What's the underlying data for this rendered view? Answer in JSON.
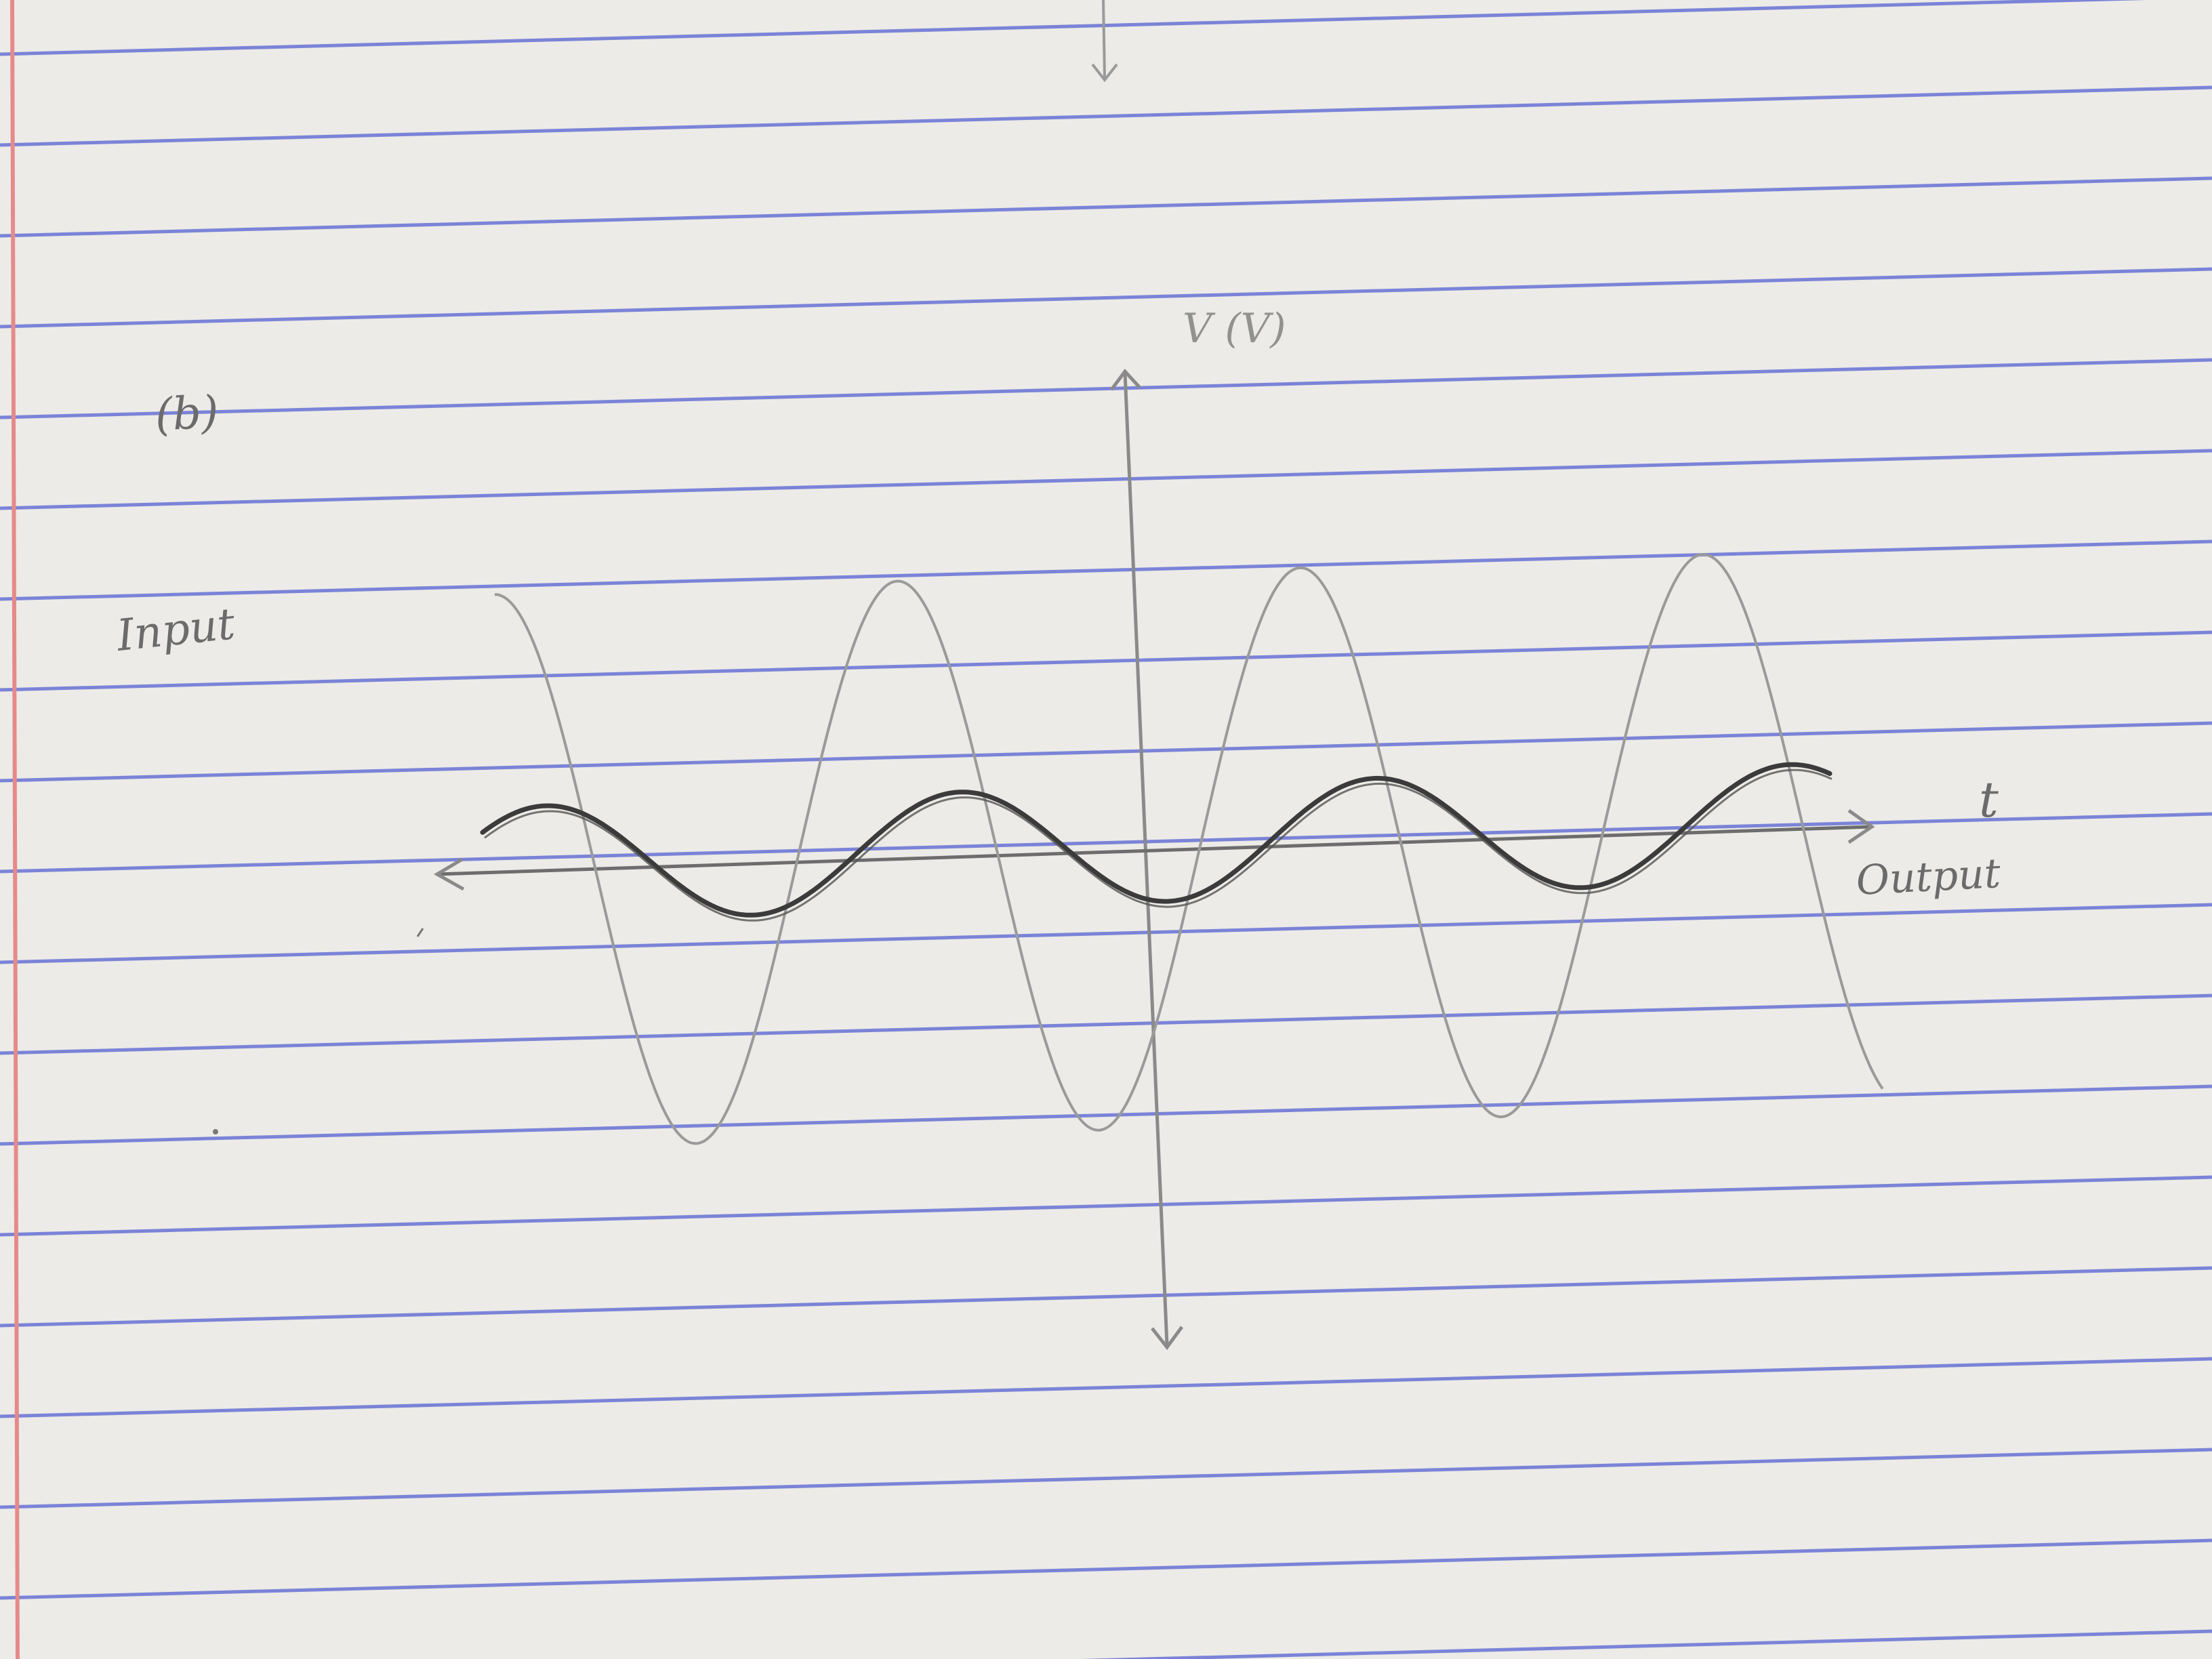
{
  "note": {
    "part_label": "(b)",
    "input_label": "Input",
    "output_label": "Output",
    "time_axis_label": "t",
    "voltage_axis_label": "V (V)"
  },
  "colors": {
    "paper": "#ecebe7",
    "rule_line": "#6f78d6",
    "margin_line": "#e58a8a",
    "pencil_light": "#9a9a9a",
    "pencil_dark": "#3b3b3b"
  },
  "sketch": {
    "input_wave_cycles": 4,
    "output_wave_cycles": 4,
    "output_to_input_amplitude_ratio": 0.22
  }
}
